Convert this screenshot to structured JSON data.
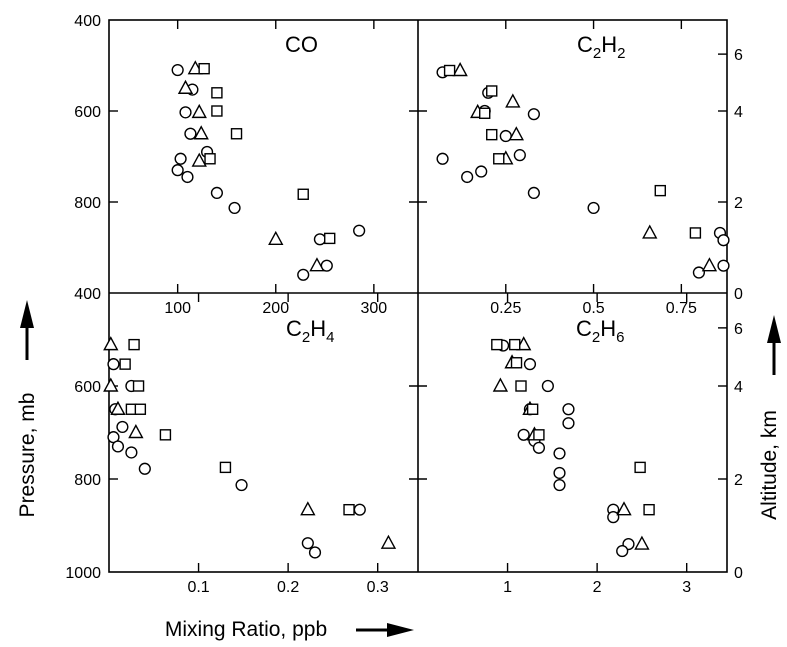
{
  "chart_data": {
    "type": "scatter",
    "xlabel": "Mixing Ratio, ppb",
    "ylabel": "Pressure, mb",
    "y2label": "Altitude, km",
    "ylim": [
      400,
      1000
    ],
    "y_inverted": true,
    "yticks": [
      "400",
      "600",
      "800",
      "1000"
    ],
    "y2ticks": [
      "0",
      "2",
      "4",
      "6"
    ],
    "y2_ticks_pressure": [
      1000,
      800,
      600,
      475
    ],
    "marker_shapes": [
      "circle",
      "triangle",
      "square"
    ],
    "grid": false,
    "panels": [
      {
        "name": "co",
        "label": "CO",
        "label_sub": [],
        "xlim": [
          30,
          345
        ],
        "xticks": [
          100,
          200,
          300
        ],
        "xtick_labels": [
          "100",
          "200",
          "300"
        ],
        "circle": [
          [
            100,
            510
          ],
          [
            115,
            553
          ],
          [
            108,
            603
          ],
          [
            113,
            650
          ],
          [
            130,
            690
          ],
          [
            103,
            705
          ],
          [
            100,
            730
          ],
          [
            110,
            745
          ],
          [
            140,
            780
          ],
          [
            158,
            813
          ],
          [
            245,
            882
          ],
          [
            285,
            863
          ],
          [
            252,
            940
          ],
          [
            228,
            960
          ]
        ],
        "triangle": [
          [
            118,
            507
          ],
          [
            108,
            550
          ],
          [
            122,
            603
          ],
          [
            124,
            650
          ],
          [
            122,
            710
          ],
          [
            200,
            882
          ],
          [
            242,
            940
          ]
        ],
        "square": [
          [
            127,
            507
          ],
          [
            140,
            560
          ],
          [
            140,
            600
          ],
          [
            160,
            650
          ],
          [
            133,
            705
          ],
          [
            228,
            783
          ],
          [
            255,
            880
          ]
        ]
      },
      {
        "name": "c2h2",
        "label": "C",
        "label_sub": [
          "2",
          "H",
          "2"
        ],
        "xlim": [
          0,
          0.88
        ],
        "xticks": [
          0.25,
          0.5,
          0.75
        ],
        "xtick_labels": [
          "0.25",
          "0.5",
          "0.75"
        ],
        "circle": [
          [
            0.07,
            515
          ],
          [
            0.2,
            560
          ],
          [
            0.19,
            600
          ],
          [
            0.33,
            607
          ],
          [
            0.25,
            655
          ],
          [
            0.29,
            697
          ],
          [
            0.07,
            705
          ],
          [
            0.14,
            745
          ],
          [
            0.18,
            733
          ],
          [
            0.33,
            780
          ],
          [
            0.5,
            813
          ],
          [
            0.86,
            868
          ],
          [
            0.87,
            884
          ],
          [
            0.87,
            940
          ],
          [
            0.8,
            955
          ]
        ],
        "triangle": [
          [
            0.12,
            511
          ],
          [
            0.27,
            580
          ],
          [
            0.17,
            603
          ],
          [
            0.28,
            652
          ],
          [
            0.25,
            705
          ],
          [
            0.66,
            868
          ],
          [
            0.83,
            940
          ]
        ],
        "square": [
          [
            0.09,
            511
          ],
          [
            0.21,
            556
          ],
          [
            0.19,
            605
          ],
          [
            0.21,
            652
          ],
          [
            0.23,
            705
          ],
          [
            0.69,
            775
          ],
          [
            0.79,
            868
          ]
        ]
      },
      {
        "name": "c2h4",
        "label": "C",
        "label_sub": [
          "2",
          "H",
          "4"
        ],
        "xlim": [
          0,
          0.345
        ],
        "xticks": [
          0.1,
          0.2,
          0.3
        ],
        "xtick_labels": [
          "0.1",
          "0.2",
          "0.3"
        ],
        "circle": [
          [
            0.005,
            553
          ],
          [
            0.025,
            600
          ],
          [
            0.007,
            650
          ],
          [
            0.015,
            688
          ],
          [
            0.005,
            710
          ],
          [
            0.01,
            730
          ],
          [
            0.025,
            743
          ],
          [
            0.04,
            778
          ],
          [
            0.148,
            813
          ],
          [
            0.28,
            866
          ],
          [
            0.222,
            938
          ],
          [
            0.23,
            958
          ]
        ],
        "triangle": [
          [
            0.002,
            511
          ],
          [
            0.002,
            600
          ],
          [
            0.01,
            650
          ],
          [
            0.03,
            700
          ],
          [
            0.222,
            866
          ],
          [
            0.312,
            938
          ]
        ],
        "square": [
          [
            0.028,
            511
          ],
          [
            0.018,
            553
          ],
          [
            0.033,
            600
          ],
          [
            0.025,
            650
          ],
          [
            0.035,
            650
          ],
          [
            0.063,
            705
          ],
          [
            0.13,
            775
          ],
          [
            0.268,
            866
          ]
        ]
      },
      {
        "name": "c2h6",
        "label": "C",
        "label_sub": [
          "2",
          "H",
          "6"
        ],
        "xlim": [
          0,
          3.45
        ],
        "xticks": [
          1,
          2,
          3
        ],
        "xtick_labels": [
          "1",
          "2",
          "3"
        ],
        "circle": [
          [
            0.95,
            513
          ],
          [
            1.25,
            553
          ],
          [
            1.45,
            600
          ],
          [
            1.25,
            650
          ],
          [
            1.68,
            650
          ],
          [
            1.68,
            680
          ],
          [
            1.18,
            705
          ],
          [
            1.3,
            718
          ],
          [
            1.35,
            733
          ],
          [
            1.58,
            745
          ],
          [
            1.58,
            787
          ],
          [
            1.58,
            813
          ],
          [
            2.18,
            866
          ],
          [
            2.18,
            882
          ],
          [
            2.35,
            940
          ],
          [
            2.28,
            955
          ]
        ],
        "triangle": [
          [
            1.18,
            511
          ],
          [
            1.05,
            550
          ],
          [
            0.92,
            600
          ],
          [
            1.25,
            650
          ],
          [
            1.3,
            705
          ],
          [
            2.3,
            866
          ],
          [
            2.5,
            940
          ]
        ],
        "square": [
          [
            0.88,
            511
          ],
          [
            1.08,
            511
          ],
          [
            1.1,
            550
          ],
          [
            1.15,
            600
          ],
          [
            1.28,
            650
          ],
          [
            1.35,
            705
          ],
          [
            2.48,
            775
          ],
          [
            2.58,
            866
          ]
        ]
      }
    ]
  }
}
